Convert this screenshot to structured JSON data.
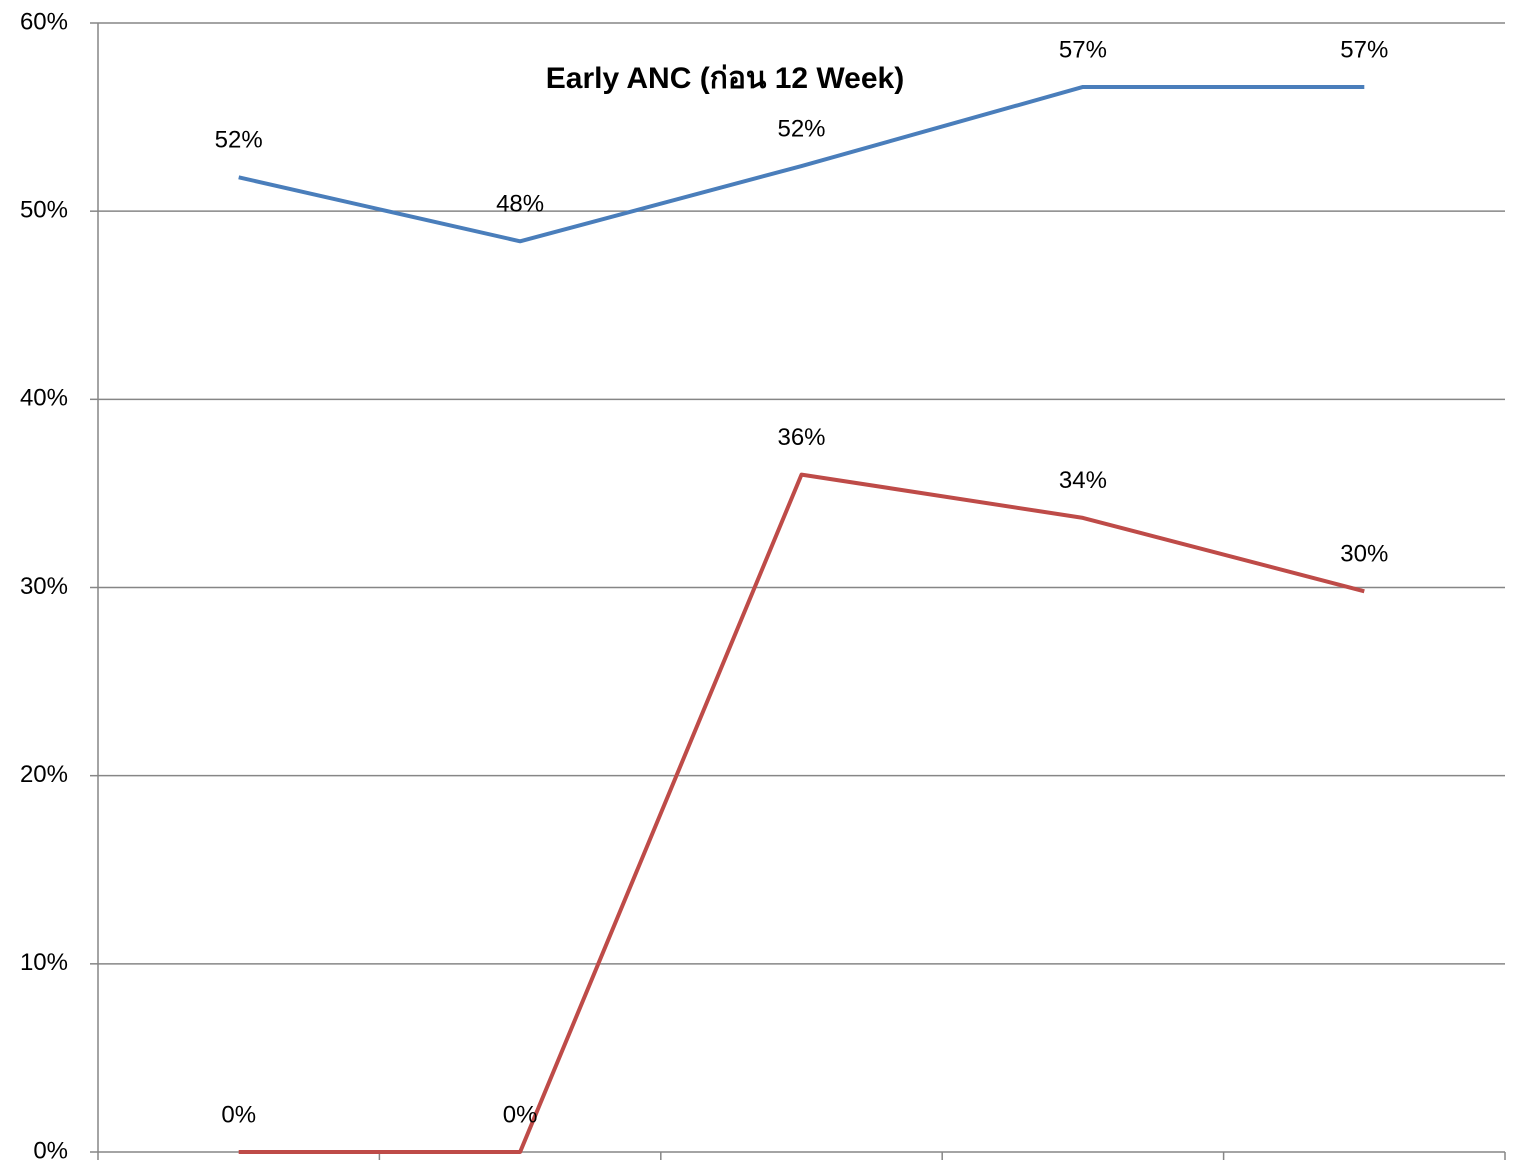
{
  "chart_data": {
    "type": "line",
    "title": "Early ANC (ก่อน 12 Week)",
    "categories": [
      null,
      null,
      null,
      null,
      null
    ],
    "series": [
      {
        "color": "#4a7ebb",
        "values": [
          51.8,
          48.4,
          52.4,
          56.6,
          56.6
        ],
        "value_labels": [
          "52%",
          "48%",
          "52%",
          "57%",
          "57%"
        ]
      },
      {
        "color": "#be4b48",
        "values": [
          0,
          0,
          36.0,
          33.7,
          29.8
        ],
        "value_labels": [
          "0%",
          "0%",
          "36%",
          "34%",
          "30%"
        ]
      }
    ],
    "ylim": [
      0,
      60
    ],
    "yticks": [
      {
        "value": 0,
        "label": "0%"
      },
      {
        "value": 10,
        "label": "10%"
      },
      {
        "value": 20,
        "label": "20%"
      },
      {
        "value": 30,
        "label": "30%"
      },
      {
        "value": 40,
        "label": "40%"
      },
      {
        "value": 50,
        "label": "50%"
      },
      {
        "value": 60,
        "label": "60%"
      }
    ],
    "grid": true
  }
}
